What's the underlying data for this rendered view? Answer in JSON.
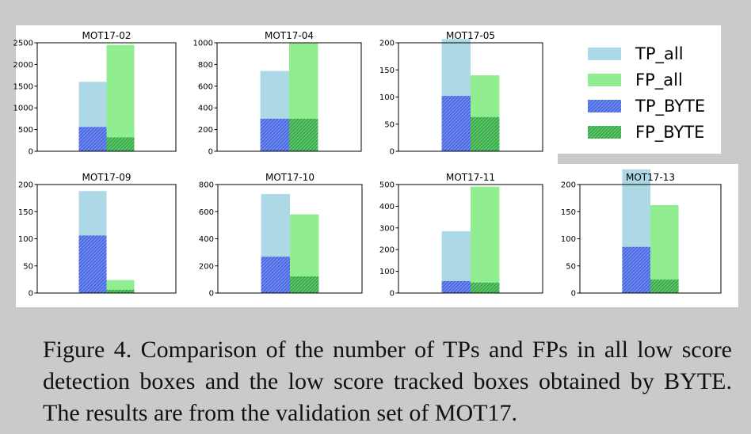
{
  "caption": "Figure 4.  Comparison of the number of TPs and FPs in all low score detection boxes and the low score tracked boxes obtained by BYTE. The results are from the validation set of MOT17.",
  "colors": {
    "tp_all": "#add8e6",
    "fp_all": "#90ee90",
    "tp_byte": "#3a5fe0",
    "fp_byte": "#2e9e3a"
  },
  "legend": {
    "placement": "top-right",
    "entries": [
      "TP_all",
      "FP_all",
      "TP_BYTE",
      "FP_BYTE"
    ]
  },
  "chart_data": [
    {
      "type": "bar",
      "title": "MOT17-02",
      "ylim": [
        0,
        2500
      ],
      "yticks": [
        0,
        500,
        1000,
        1500,
        2000,
        2500
      ],
      "tp_all": 1600,
      "fp_all": 2450,
      "tp_byte": 560,
      "fp_byte": 320
    },
    {
      "type": "bar",
      "title": "MOT17-04",
      "ylim": [
        0,
        1000
      ],
      "yticks": [
        0,
        200,
        400,
        600,
        800,
        1000
      ],
      "tp_all": 740,
      "fp_all": 1000,
      "tp_byte": 300,
      "fp_byte": 300
    },
    {
      "type": "bar",
      "title": "MOT17-05",
      "ylim": [
        0,
        200
      ],
      "yticks": [
        0,
        50,
        100,
        150,
        200
      ],
      "tp_all": 207,
      "fp_all": 140,
      "tp_byte": 102,
      "fp_byte": 63
    },
    {
      "type": "bar",
      "title": "MOT17-09",
      "ylim": [
        0,
        200
      ],
      "yticks": [
        0,
        50,
        100,
        150,
        200
      ],
      "tp_all": 188,
      "fp_all": 24,
      "tp_byte": 106,
      "fp_byte": 6
    },
    {
      "type": "bar",
      "title": "MOT17-10",
      "ylim": [
        0,
        800
      ],
      "yticks": [
        0,
        200,
        400,
        600,
        800
      ],
      "tp_all": 730,
      "fp_all": 580,
      "tp_byte": 268,
      "fp_byte": 122
    },
    {
      "type": "bar",
      "title": "MOT17-11",
      "ylim": [
        0,
        500
      ],
      "yticks": [
        0,
        100,
        200,
        300,
        400,
        500
      ],
      "tp_all": 285,
      "fp_all": 490,
      "tp_byte": 55,
      "fp_byte": 48
    },
    {
      "type": "bar",
      "title": "MOT17-13",
      "ylim": [
        0,
        200
      ],
      "yticks": [
        0,
        50,
        100,
        150,
        200
      ],
      "tp_all": 228,
      "fp_all": 162,
      "tp_byte": 85,
      "fp_byte": 25
    }
  ]
}
